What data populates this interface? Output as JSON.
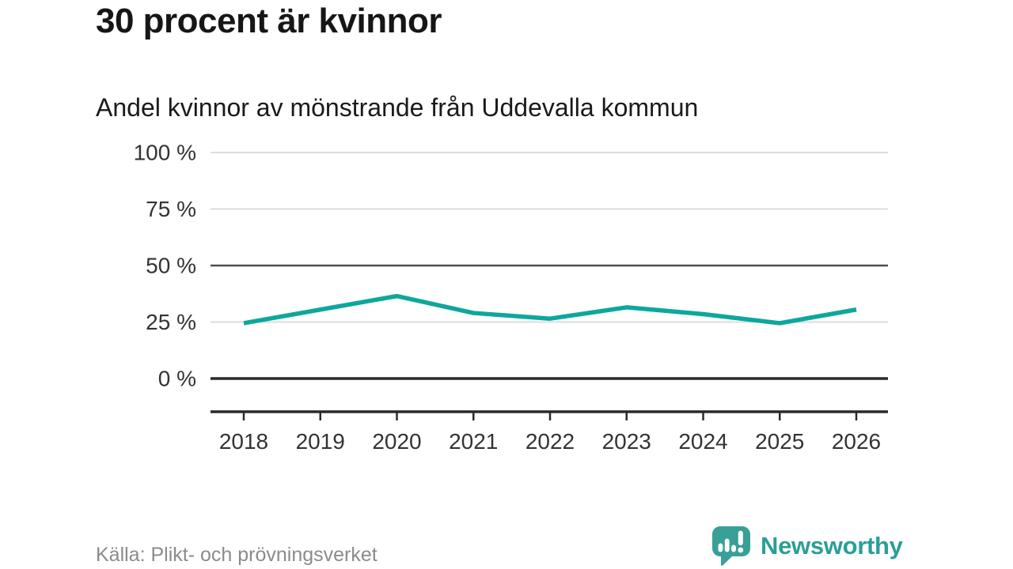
{
  "header": {
    "title": "30 procent är kvinnor",
    "subtitle": "Andel kvinnor av mönstrande från Uddevalla kommun"
  },
  "chart_data": {
    "type": "line",
    "title": "30 procent är kvinnor",
    "subtitle": "Andel kvinnor av mönstrande från Uddevalla kommun",
    "x": [
      2018,
      2019,
      2020,
      2021,
      2022,
      2023,
      2024,
      2025,
      2026
    ],
    "xtick_labels": [
      "2018",
      "2019",
      "2020",
      "2021",
      "2022",
      "2023",
      "2024",
      "2025",
      "2026"
    ],
    "series": [
      {
        "name": "andel-kvinnor",
        "values": [
          24.5,
          30.5,
          36.5,
          29,
          26.5,
          31.5,
          28.5,
          24.5,
          30.5
        ],
        "color": "#0ea79c"
      }
    ],
    "ylim": [
      0,
      100
    ],
    "yticks": [
      0,
      25,
      50,
      75,
      100
    ],
    "ytick_labels": [
      "0 %",
      "25 %",
      "50 %",
      "75 %",
      "100 %"
    ],
    "grid": "horizontal",
    "emphasized_gridline_value": 50,
    "baseline_value": 0,
    "legend": "none"
  },
  "footer": {
    "source": "Källa: Plikt- och prövningsverket",
    "brand_name": "Newsworthy",
    "brand_color": "#2b9e97"
  },
  "colors": {
    "line": "#0ea79c",
    "grid_light": "#dcdcdc",
    "grid_mid": "#4f4f4f",
    "axis_dark": "#2a2a2a",
    "text_dark": "#161616",
    "text_tick": "#333333",
    "text_muted": "#8b8b8b",
    "logo_teal": "#38a096"
  }
}
